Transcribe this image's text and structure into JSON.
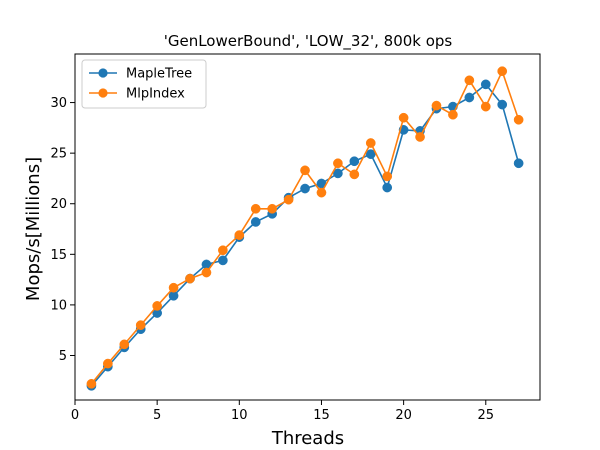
{
  "chart_data": {
    "type": "line",
    "title": "'GenLowerBound', 'LOW_32', 800k ops",
    "xlabel": "Threads",
    "ylabel": "Mops/s[Millions]",
    "xlim": [
      0,
      28.3
    ],
    "ylim": [
      0.6,
      34.8
    ],
    "xticks": [
      0,
      5,
      10,
      15,
      20,
      25
    ],
    "yticks": [
      5,
      10,
      15,
      20,
      25,
      30
    ],
    "legend_position": "top-left",
    "grid": false,
    "x": [
      1,
      2,
      3,
      4,
      5,
      6,
      7,
      8,
      9,
      10,
      11,
      12,
      13,
      14,
      15,
      16,
      17,
      18,
      19,
      20,
      21,
      22,
      23,
      24,
      25,
      26,
      27
    ],
    "series": [
      {
        "name": "MapleTree",
        "color": "#1f77b4",
        "marker": "circle",
        "values": [
          2.0,
          3.9,
          5.8,
          7.6,
          9.2,
          10.9,
          12.6,
          14.0,
          14.4,
          16.7,
          18.2,
          19.0,
          20.6,
          21.5,
          22.0,
          23.0,
          24.2,
          24.9,
          21.6,
          27.3,
          27.2,
          29.4,
          29.6,
          30.5,
          31.8,
          29.8,
          24.0
        ]
      },
      {
        "name": "MlpIndex",
        "color": "#ff7f0e",
        "marker": "circle",
        "values": [
          2.2,
          4.2,
          6.1,
          8.0,
          9.9,
          11.7,
          12.6,
          13.2,
          15.4,
          16.9,
          19.5,
          19.5,
          20.4,
          23.3,
          21.1,
          24.0,
          22.9,
          26.0,
          22.7,
          28.5,
          26.6,
          29.7,
          28.8,
          32.2,
          29.6,
          33.1,
          28.3
        ]
      }
    ]
  }
}
